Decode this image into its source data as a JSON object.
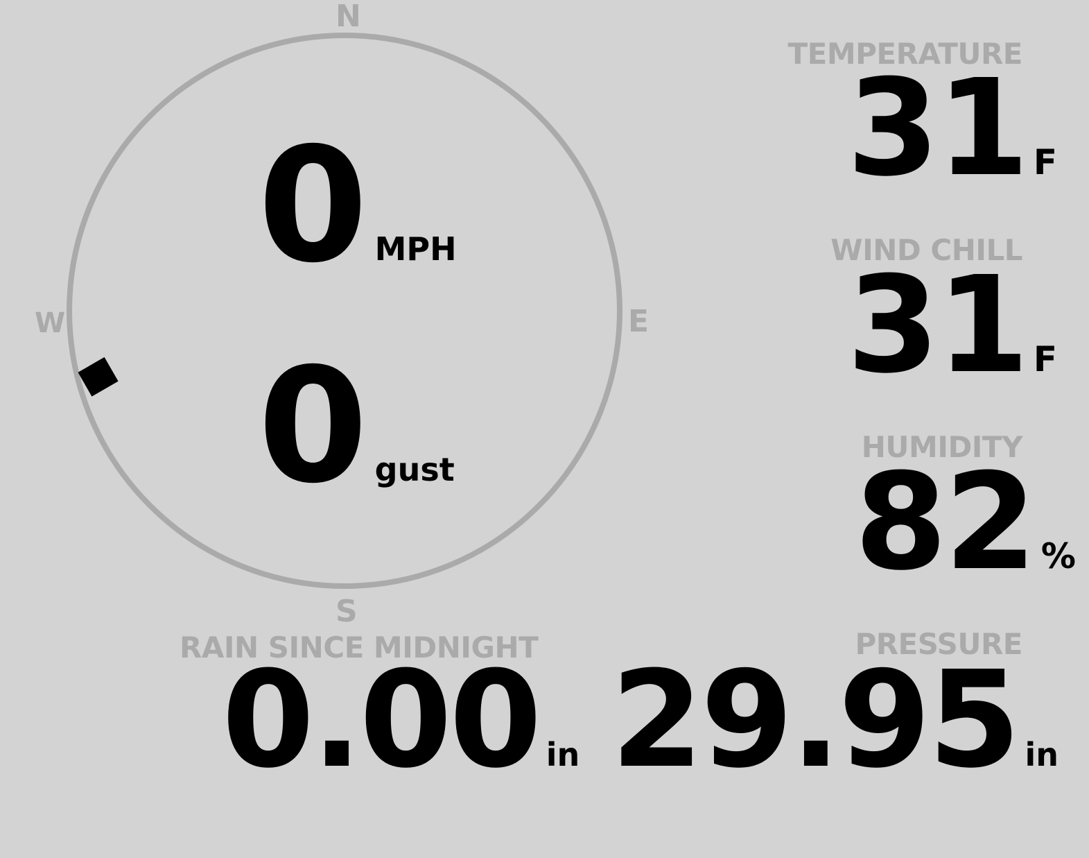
{
  "compass": {
    "labels": {
      "north": "N",
      "east": "E",
      "south": "S",
      "west": "W"
    },
    "wind_direction_deg": 255,
    "ring_color": "#aaaaaa",
    "marker_color": "#000000"
  },
  "wind": {
    "speed": "0",
    "speed_unit": "MPH",
    "gust": "0",
    "gust_unit": "gust"
  },
  "temperature": {
    "label": "TEMPERATURE",
    "value": "31",
    "unit": "F"
  },
  "wind_chill": {
    "label": "WIND CHILL",
    "value": "31",
    "unit": "F"
  },
  "humidity": {
    "label": "HUMIDITY",
    "value": "82",
    "unit": "%"
  },
  "rain": {
    "label": "RAIN SINCE MIDNIGHT",
    "value": "0.00",
    "unit": "in"
  },
  "pressure": {
    "label": "PRESSURE",
    "value": "29.95",
    "unit": "in"
  },
  "colors": {
    "background": "#d3d3d3",
    "label": "#aaaaaa",
    "value": "#000000"
  }
}
